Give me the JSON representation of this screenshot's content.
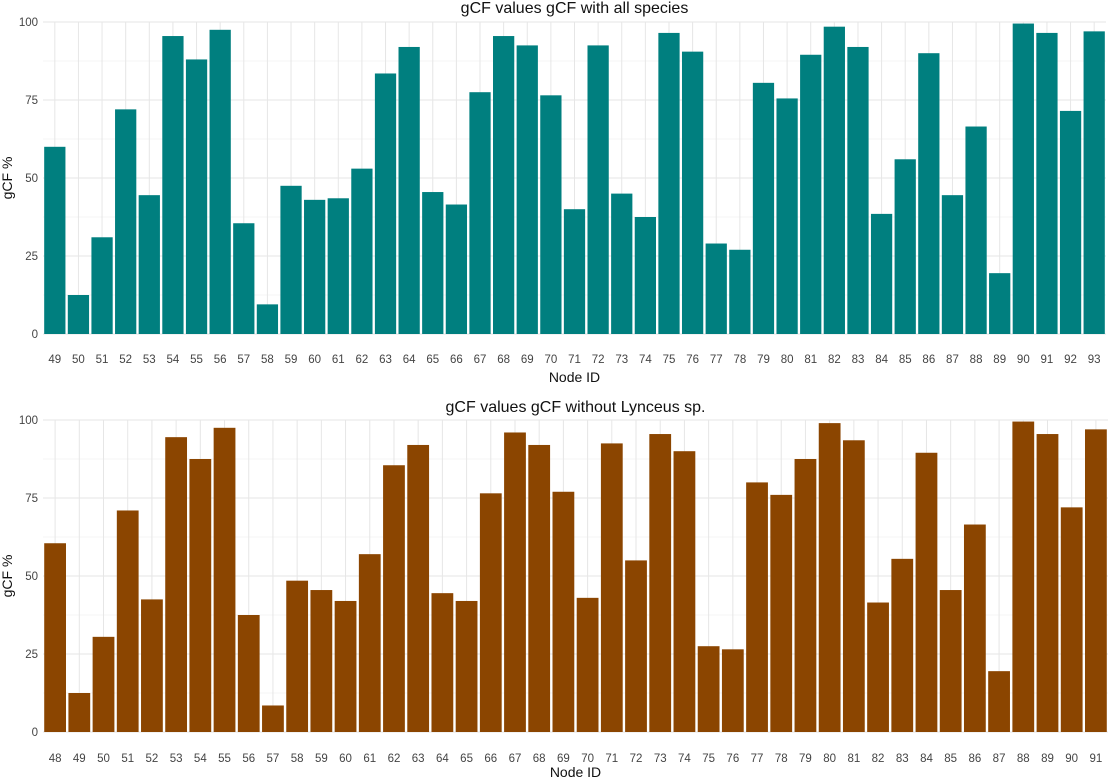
{
  "chart_data": [
    {
      "type": "bar",
      "title": "gCF values gCF with all species",
      "xlabel": "Node ID",
      "ylabel": "gCF %",
      "ylim": [
        0,
        100
      ],
      "yticks": [
        "0",
        "25",
        "50",
        "75",
        "100"
      ],
      "grid": true,
      "color": "#007F7F",
      "categories": [
        "49",
        "50",
        "51",
        "52",
        "53",
        "54",
        "55",
        "56",
        "57",
        "58",
        "59",
        "60",
        "61",
        "62",
        "63",
        "64",
        "65",
        "66",
        "67",
        "68",
        "69",
        "70",
        "71",
        "72",
        "73",
        "74",
        "75",
        "76",
        "77",
        "78",
        "79",
        "80",
        "81",
        "82",
        "83",
        "84",
        "85",
        "86",
        "87",
        "88",
        "89",
        "90",
        "91",
        "92",
        "93"
      ],
      "values": [
        60,
        12.5,
        31,
        72,
        44.5,
        95.5,
        88,
        97.5,
        35.5,
        9.5,
        47.5,
        43,
        43.5,
        53,
        83.5,
        92,
        45.5,
        41.5,
        77.5,
        95.5,
        92.5,
        76.5,
        40,
        92.5,
        45,
        37.5,
        96.5,
        90.5,
        29,
        27,
        80.5,
        75.5,
        89.5,
        98.5,
        92,
        38.5,
        56,
        90,
        44.5,
        66.5,
        19.5,
        99.5,
        96.5,
        71.5,
        97
      ]
    },
    {
      "type": "bar",
      "title": "gCF values gCF without Lynceus sp.",
      "xlabel": "Node ID",
      "ylabel": "gCF %",
      "ylim": [
        0,
        100
      ],
      "yticks": [
        "0",
        "25",
        "50",
        "75",
        "100"
      ],
      "grid": true,
      "color": "#8B4500",
      "categories": [
        "48",
        "49",
        "50",
        "51",
        "52",
        "53",
        "54",
        "55",
        "56",
        "57",
        "58",
        "59",
        "60",
        "61",
        "62",
        "63",
        "64",
        "65",
        "66",
        "67",
        "68",
        "69",
        "70",
        "71",
        "72",
        "73",
        "74",
        "75",
        "76",
        "77",
        "78",
        "79",
        "80",
        "81",
        "82",
        "83",
        "84",
        "85",
        "86",
        "87",
        "88",
        "89",
        "90",
        "91"
      ],
      "values": [
        60.5,
        12.5,
        30.5,
        71,
        42.5,
        94.5,
        87.5,
        97.5,
        37.5,
        8.5,
        48.5,
        45.5,
        42,
        57,
        85.5,
        92,
        44.5,
        42,
        76.5,
        96,
        92,
        77,
        43,
        92.5,
        55,
        95.5,
        90,
        27.5,
        26.5,
        80,
        76,
        87.5,
        99,
        93.5,
        41.5,
        55.5,
        89.5,
        45.5,
        66.5,
        19.5,
        99.5,
        95.5,
        72,
        97
      ]
    }
  ]
}
